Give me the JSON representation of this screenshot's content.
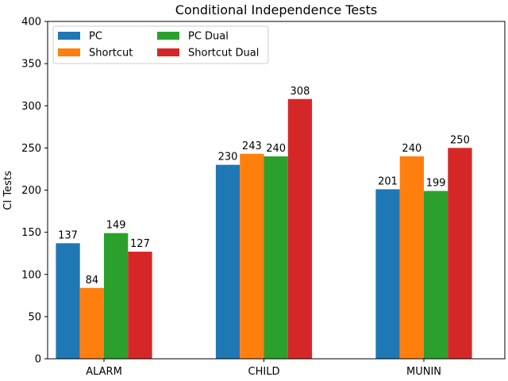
{
  "chart_data": {
    "type": "bar",
    "title": "Conditional Independence Tests",
    "xlabel": "",
    "ylabel": "CI Tests",
    "categories": [
      "ALARM",
      "CHILD",
      "MUNIN"
    ],
    "series": [
      {
        "name": "PC",
        "color": "#1f77b4",
        "values": [
          137,
          230,
          201
        ]
      },
      {
        "name": "Shortcut",
        "color": "#ff7f0e",
        "values": [
          84,
          243,
          240
        ]
      },
      {
        "name": "PC Dual",
        "color": "#2ca02c",
        "values": [
          149,
          240,
          199
        ]
      },
      {
        "name": "Shortcut Dual",
        "color": "#d62728",
        "values": [
          127,
          308,
          250
        ]
      }
    ],
    "ylim": [
      0,
      400
    ],
    "yticks": [
      0,
      50,
      100,
      150,
      200,
      250,
      300,
      350,
      400
    ],
    "grid": false,
    "legend_position": "top-left"
  }
}
